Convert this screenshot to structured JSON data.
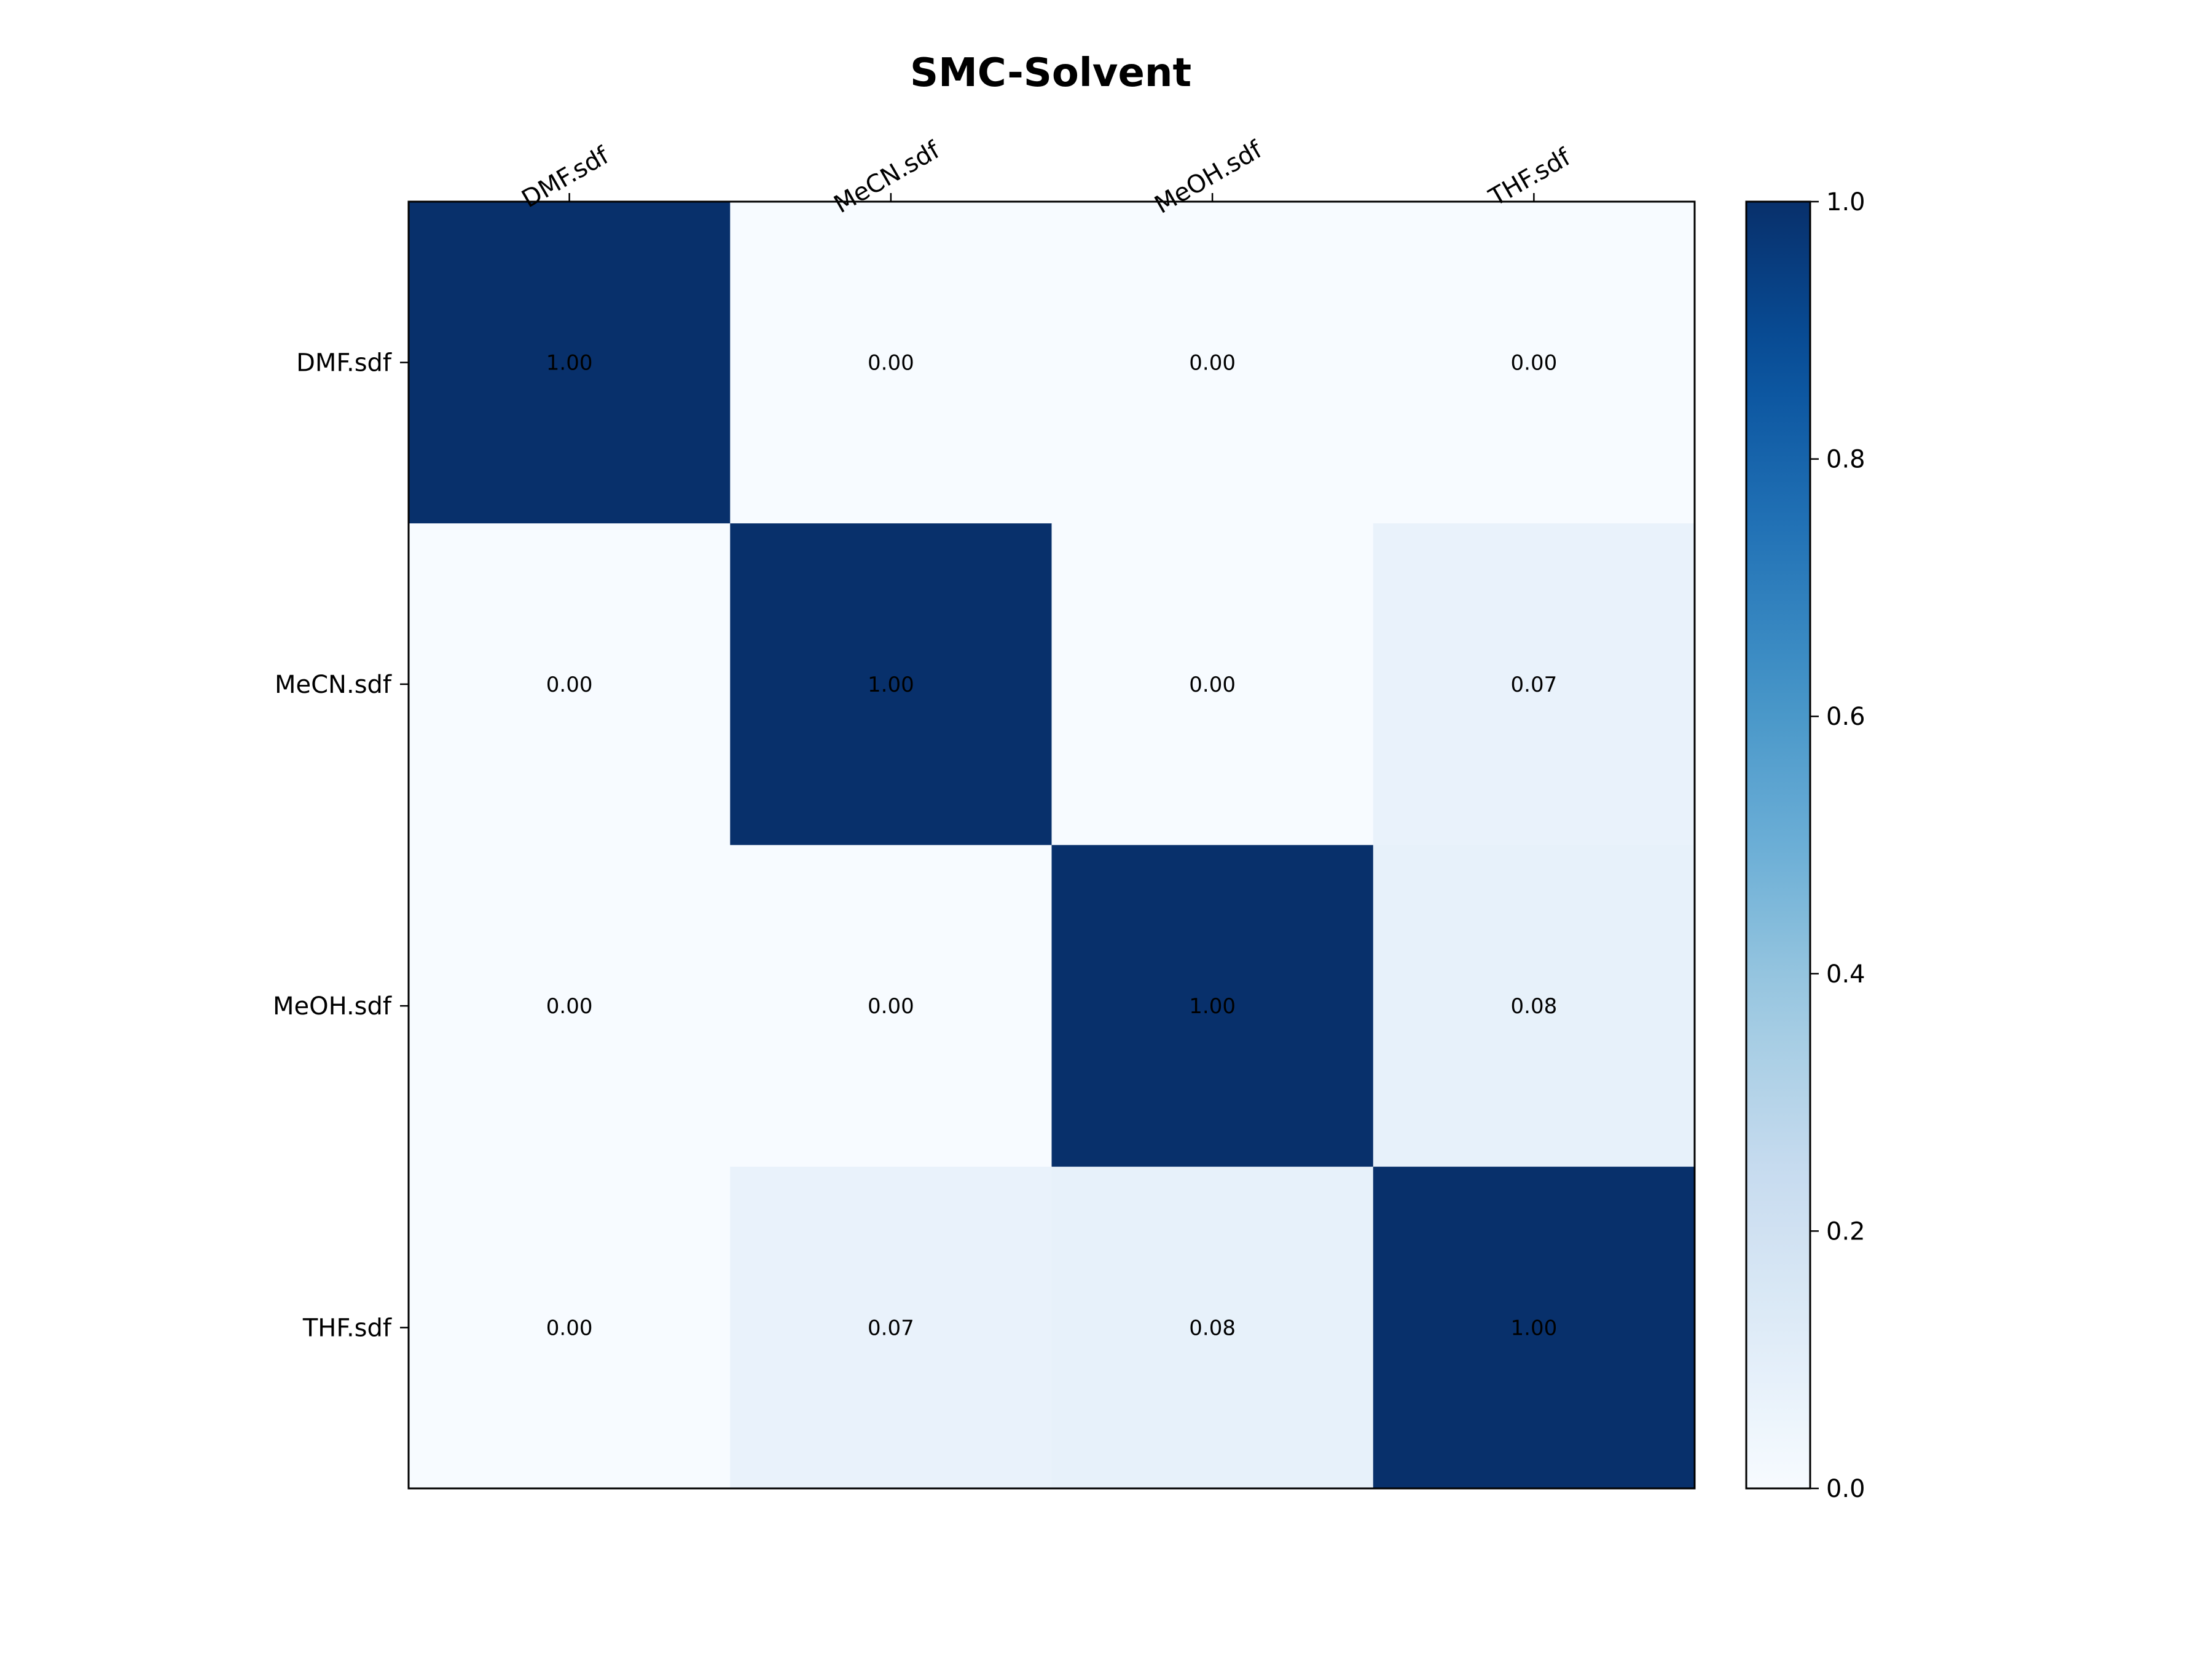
{
  "chart_data": {
    "type": "heatmap",
    "title": "SMC-Solvent",
    "x_labels": [
      "DMF.sdf",
      "MeCN.sdf",
      "MeOH.sdf",
      "THF.sdf"
    ],
    "y_labels": [
      "DMF.sdf",
      "MeCN.sdf",
      "MeOH.sdf",
      "THF.sdf"
    ],
    "values": [
      [
        1.0,
        0.0,
        0.0,
        0.0
      ],
      [
        0.0,
        1.0,
        0.0,
        0.07
      ],
      [
        0.0,
        0.0,
        1.0,
        0.08
      ],
      [
        0.0,
        0.07,
        0.08,
        1.0
      ]
    ],
    "value_format": "0.00",
    "colormap": "Blues",
    "colorbar": {
      "range": [
        0.0,
        1.0
      ],
      "ticks": [
        0.0,
        0.2,
        0.4,
        0.6,
        0.8,
        1.0
      ],
      "tick_labels": [
        "0.0",
        "0.2",
        "0.4",
        "0.6",
        "0.8",
        "1.0"
      ]
    },
    "x_ticks_position": "top",
    "x_tick_rotation": 30,
    "colors": {
      "low": "#f7fbff",
      "high": "#08306b"
    }
  }
}
